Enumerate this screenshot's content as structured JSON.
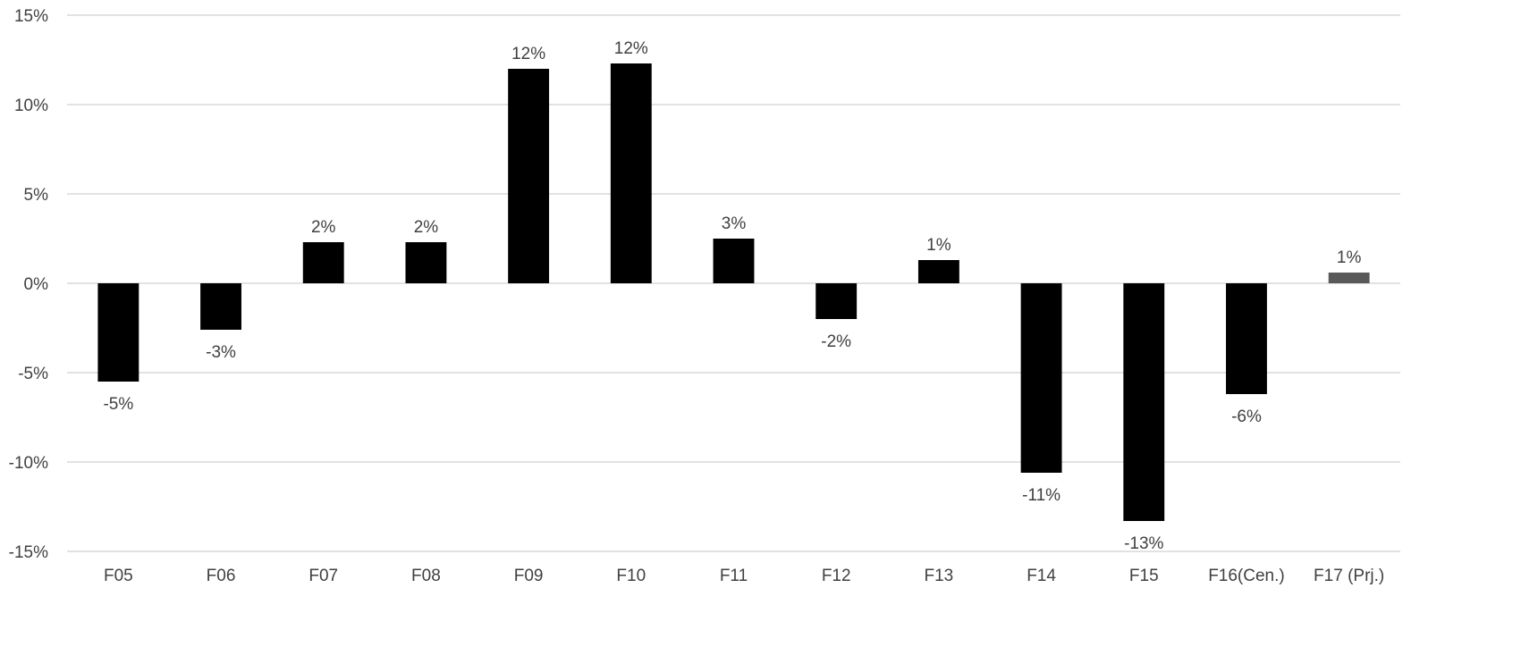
{
  "chart_data": {
    "type": "bar",
    "title": "",
    "xlabel": "",
    "ylabel": "",
    "categories": [
      "F05",
      "F06",
      "F07",
      "F08",
      "F09",
      "F10",
      "F11",
      "F12",
      "F13",
      "F14",
      "F15",
      "F16(Cen.)",
      "F17 (Prj.)"
    ],
    "values": [
      -5.5,
      -2.6,
      2.3,
      2.3,
      12.0,
      12.3,
      2.5,
      -2.0,
      1.3,
      -10.6,
      -13.3,
      -6.2,
      0.6
    ],
    "data_labels": [
      "-5%",
      "-3%",
      "2%",
      "2%",
      "12%",
      "12%",
      "3%",
      "-2%",
      "1%",
      "-11%",
      "-13%",
      "-6%",
      "1%"
    ],
    "bar_colors": [
      "#000000",
      "#000000",
      "#000000",
      "#000000",
      "#000000",
      "#000000",
      "#000000",
      "#000000",
      "#000000",
      "#000000",
      "#000000",
      "#000000",
      "#595959"
    ],
    "ylim": [
      -15,
      15
    ],
    "yticks": [
      15,
      10,
      5,
      0,
      -5,
      -10,
      -15
    ],
    "ytick_labels": [
      "15%",
      "10%",
      "5%",
      "0%",
      "-5%",
      "-10%",
      "-15%"
    ],
    "grid": true,
    "legend": "none",
    "gridline_color": "#d9d9d9",
    "text_color": "#404040"
  }
}
